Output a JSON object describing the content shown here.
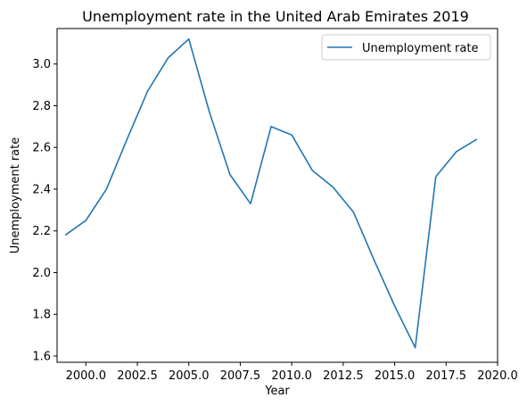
{
  "chart_data": {
    "type": "line",
    "title": "Unemployment rate in the United Arab Emirates 2019",
    "xlabel": "Year",
    "ylabel": "Unemployment rate",
    "xlim": [
      1998.6,
      2020.0
    ],
    "ylim": [
      1.57,
      3.17
    ],
    "x_ticks": [
      2000.0,
      2002.5,
      2005.0,
      2007.5,
      2010.0,
      2012.5,
      2015.0,
      2017.5,
      2020.0
    ],
    "x_tick_labels": [
      "2000.0",
      "2002.5",
      "2005.0",
      "2007.5",
      "2010.0",
      "2012.5",
      "2015.0",
      "2017.5",
      "2020.0"
    ],
    "y_ticks": [
      1.6,
      1.8,
      2.0,
      2.2,
      2.4,
      2.6,
      2.8,
      3.0
    ],
    "y_tick_labels": [
      "1.6",
      "1.8",
      "2.0",
      "2.2",
      "2.4",
      "2.6",
      "2.8",
      "3.0"
    ],
    "grid": false,
    "legend_position": "top-right",
    "series": [
      {
        "name": "Unemployment rate",
        "color": "#1f77b4",
        "x": [
          1999,
          2000,
          2001,
          2002,
          2003,
          2004,
          2005,
          2006,
          2007,
          2008,
          2009,
          2010,
          2011,
          2012,
          2013,
          2014,
          2015,
          2016,
          2017,
          2018,
          2019
        ],
        "y": [
          2.18,
          2.25,
          2.4,
          2.64,
          2.87,
          3.03,
          3.12,
          2.77,
          2.47,
          2.33,
          2.7,
          2.66,
          2.49,
          2.41,
          2.29,
          2.06,
          1.84,
          1.64,
          2.46,
          2.58,
          2.64
        ]
      }
    ]
  }
}
